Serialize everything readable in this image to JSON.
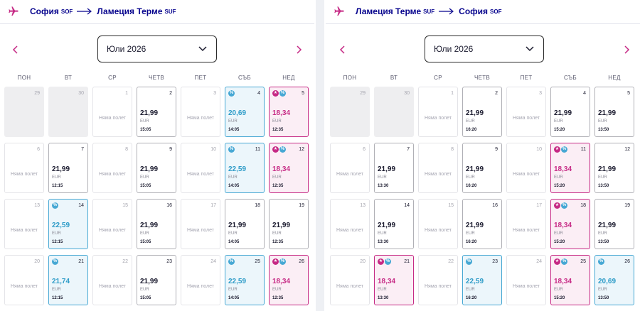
{
  "outbound": {
    "route": {
      "from_city": "София",
      "from_code": "SOF",
      "to_city": "Ламеция Терме",
      "to_code": "SUF"
    },
    "month_label": "Юли 2026",
    "days": [
      {
        "num": "29",
        "kind": "other"
      },
      {
        "num": "30",
        "kind": "other"
      },
      {
        "num": "1",
        "kind": "empty"
      },
      {
        "num": "2",
        "kind": "flight",
        "price": "21,99",
        "time": "15:05"
      },
      {
        "num": "3",
        "kind": "empty"
      },
      {
        "num": "4",
        "kind": "disc",
        "price": "20,69",
        "time": "14:05"
      },
      {
        "num": "5",
        "kind": "club",
        "price": "18,34",
        "time": "12:35"
      },
      {
        "num": "6",
        "kind": "empty"
      },
      {
        "num": "7",
        "kind": "flight",
        "price": "21,99",
        "time": "12:15"
      },
      {
        "num": "8",
        "kind": "empty"
      },
      {
        "num": "9",
        "kind": "flight",
        "price": "21,99",
        "time": "15:05"
      },
      {
        "num": "10",
        "kind": "empty"
      },
      {
        "num": "11",
        "kind": "disc",
        "price": "22,59",
        "time": "14:05"
      },
      {
        "num": "12",
        "kind": "club",
        "price": "18,34",
        "time": "12:35"
      },
      {
        "num": "13",
        "kind": "empty"
      },
      {
        "num": "14",
        "kind": "disc",
        "price": "22,59",
        "time": "12:15"
      },
      {
        "num": "15",
        "kind": "empty"
      },
      {
        "num": "16",
        "kind": "flight",
        "price": "21,99",
        "time": "15:05"
      },
      {
        "num": "17",
        "kind": "empty"
      },
      {
        "num": "18",
        "kind": "flight",
        "price": "21,99",
        "time": "14:05"
      },
      {
        "num": "19",
        "kind": "flight",
        "price": "21,99",
        "time": "12:35"
      },
      {
        "num": "20",
        "kind": "empty"
      },
      {
        "num": "21",
        "kind": "disc",
        "price": "21,74",
        "time": "12:15"
      },
      {
        "num": "22",
        "kind": "empty"
      },
      {
        "num": "23",
        "kind": "flight",
        "price": "21,99",
        "time": "15:05"
      },
      {
        "num": "24",
        "kind": "empty"
      },
      {
        "num": "25",
        "kind": "disc",
        "price": "22,59",
        "time": "14:05"
      },
      {
        "num": "26",
        "kind": "club",
        "price": "18,34",
        "time": "12:35"
      }
    ]
  },
  "return": {
    "route": {
      "from_city": "Ламеция Терме",
      "from_code": "SUF",
      "to_city": "София",
      "to_code": "SOF"
    },
    "month_label": "Юли 2026",
    "days": [
      {
        "num": "29",
        "kind": "other"
      },
      {
        "num": "30",
        "kind": "other"
      },
      {
        "num": "1",
        "kind": "empty"
      },
      {
        "num": "2",
        "kind": "flight",
        "price": "21,99",
        "time": "16:20"
      },
      {
        "num": "3",
        "kind": "empty"
      },
      {
        "num": "4",
        "kind": "flight",
        "price": "21,99",
        "time": "15:20"
      },
      {
        "num": "5",
        "kind": "flight",
        "price": "21,99",
        "time": "13:50"
      },
      {
        "num": "6",
        "kind": "empty"
      },
      {
        "num": "7",
        "kind": "flight",
        "price": "21,99",
        "time": "13:30"
      },
      {
        "num": "8",
        "kind": "empty"
      },
      {
        "num": "9",
        "kind": "flight",
        "price": "21,99",
        "time": "16:20"
      },
      {
        "num": "10",
        "kind": "empty"
      },
      {
        "num": "11",
        "kind": "club",
        "price": "18,34",
        "time": "15:20"
      },
      {
        "num": "12",
        "kind": "flight",
        "price": "21,99",
        "time": "13:50"
      },
      {
        "num": "13",
        "kind": "empty"
      },
      {
        "num": "14",
        "kind": "flight",
        "price": "21,99",
        "time": "13:30"
      },
      {
        "num": "15",
        "kind": "empty"
      },
      {
        "num": "16",
        "kind": "flight",
        "price": "21,99",
        "time": "16:20"
      },
      {
        "num": "17",
        "kind": "empty"
      },
      {
        "num": "18",
        "kind": "club",
        "price": "18,34",
        "time": "15:20"
      },
      {
        "num": "19",
        "kind": "flight",
        "price": "21,99",
        "time": "13:50"
      },
      {
        "num": "20",
        "kind": "empty"
      },
      {
        "num": "21",
        "kind": "club",
        "price": "18,34",
        "time": "13:30"
      },
      {
        "num": "22",
        "kind": "empty"
      },
      {
        "num": "23",
        "kind": "disc",
        "price": "22,59",
        "time": "16:20"
      },
      {
        "num": "24",
        "kind": "empty"
      },
      {
        "num": "25",
        "kind": "club",
        "price": "18,34",
        "time": "15:20"
      },
      {
        "num": "26",
        "kind": "disc",
        "price": "20,69",
        "time": "13:50"
      }
    ]
  },
  "weekdays": [
    "ПОН",
    "ВТ",
    "СР",
    "ЧЕТВ",
    "ПЕТ",
    "СЪБ",
    "НЕД"
  ],
  "labels": {
    "no_flight": "Няма полет",
    "currency": "EUR",
    "discount_badge": "%",
    "club_badge": "★"
  },
  "colors": {
    "brand": "#06038d",
    "accent": "#c62a85",
    "discount": "#47a8d4"
  },
  "icons": {
    "plane": "plane-icon",
    "route_arrow": "arrow-right-icon",
    "prev": "chevron-left-icon",
    "next": "chevron-right-icon",
    "dropdown": "chevron-down-icon"
  }
}
